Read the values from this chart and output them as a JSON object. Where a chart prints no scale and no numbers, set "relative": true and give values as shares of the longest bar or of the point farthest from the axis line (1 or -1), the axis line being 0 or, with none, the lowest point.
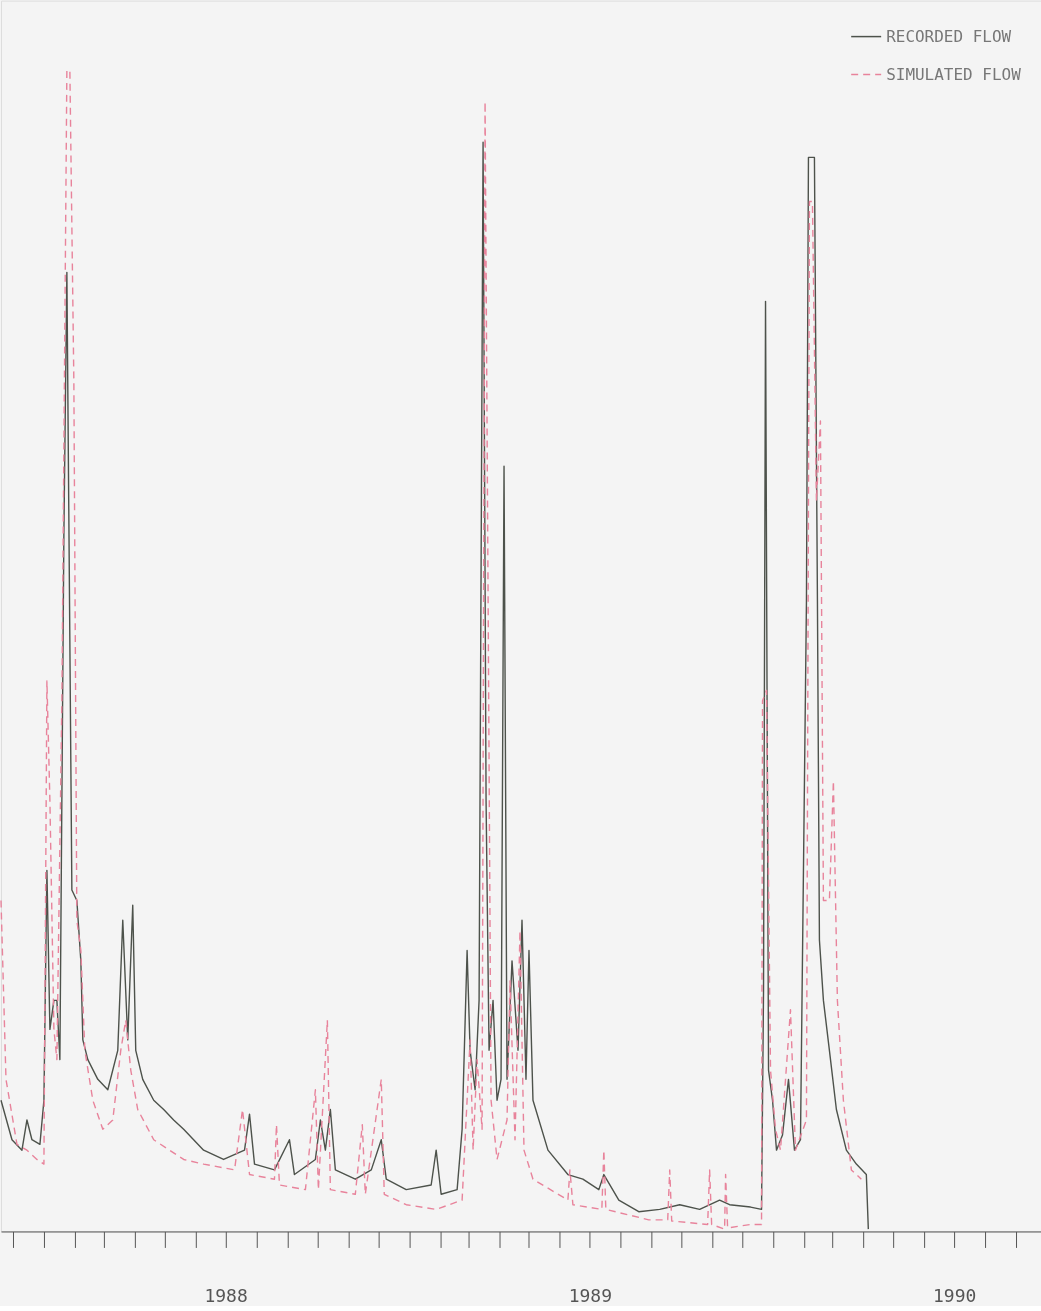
{
  "chart_data": {
    "type": "line",
    "relative": true,
    "legend": "top right",
    "grid": false,
    "marker": "none",
    "xlim": [
      "1987-11-19",
      "1990-09-26"
    ],
    "xticks": [
      {
        "value": "1987-12-01",
        "label": null
      },
      {
        "value": "1988-01-01",
        "label": null
      },
      {
        "value": "1988-02-01",
        "label": null
      },
      {
        "value": "1988-03-01",
        "label": null
      },
      {
        "value": "1988-04-01",
        "label": null
      },
      {
        "value": "1988-05-01",
        "label": null
      },
      {
        "value": "1988-06-01",
        "label": null
      },
      {
        "value": "1988-07-01",
        "label": "1988"
      },
      {
        "value": "1988-08-01",
        "label": null
      },
      {
        "value": "1988-09-01",
        "label": null
      },
      {
        "value": "1988-10-01",
        "label": null
      },
      {
        "value": "1988-11-01",
        "label": null
      },
      {
        "value": "1988-12-01",
        "label": null
      },
      {
        "value": "1989-01-01",
        "label": null
      },
      {
        "value": "1989-02-01",
        "label": null
      },
      {
        "value": "1989-03-01",
        "label": null
      },
      {
        "value": "1989-04-01",
        "label": null
      },
      {
        "value": "1989-05-01",
        "label": null
      },
      {
        "value": "1989-06-01",
        "label": null
      },
      {
        "value": "1989-07-01",
        "label": "1989"
      },
      {
        "value": "1989-08-01",
        "label": null
      },
      {
        "value": "1989-09-01",
        "label": null
      },
      {
        "value": "1989-10-01",
        "label": null
      },
      {
        "value": "1989-11-01",
        "label": null
      },
      {
        "value": "1989-12-01",
        "label": null
      },
      {
        "value": "1990-01-01",
        "label": null
      },
      {
        "value": "1990-02-01",
        "label": null
      },
      {
        "value": "1990-03-01",
        "label": null
      },
      {
        "value": "1990-04-01",
        "label": null
      },
      {
        "value": "1990-05-01",
        "label": null
      },
      {
        "value": "1990-06-01",
        "label": null
      },
      {
        "value": "1990-07-01",
        "label": "1990"
      },
      {
        "value": "1990-08-01",
        "label": null
      },
      {
        "value": "1990-09-01",
        "label": null
      }
    ],
    "series": [
      {
        "name": "RECORDED FLOW",
        "color": "#4d524b",
        "line_style": "solid",
        "x": [
          "1987-11-19",
          "1987-11-30",
          "1987-12-10",
          "1987-12-15",
          "1987-12-20",
          "1987-12-28",
          "1988-01-01",
          "1988-01-04",
          "1988-01-07",
          "1988-01-11",
          "1988-01-14",
          "1988-01-17",
          "1988-01-21",
          "1988-01-24",
          "1988-01-29",
          "1988-02-03",
          "1988-02-07",
          "1988-02-09",
          "1988-02-14",
          "1988-02-24",
          "1988-03-05",
          "1988-03-15",
          "1988-03-20",
          "1988-03-25",
          "1988-03-30",
          "1988-04-02",
          "1988-04-09",
          "1988-04-20",
          "1988-04-30",
          "1988-05-10",
          "1988-05-20",
          "1988-06-09",
          "1988-06-29",
          "1988-07-20",
          "1988-07-25",
          "1988-07-30",
          "1988-08-19",
          "1988-09-03",
          "1988-09-08",
          "1988-09-29",
          "1988-10-04",
          "1988-10-09",
          "1988-10-14",
          "1988-10-19",
          "1988-11-08",
          "1988-11-24",
          "1988-12-04",
          "1988-12-09",
          "1988-12-29",
          "1989-01-23",
          "1989-01-28",
          "1989-02-02",
          "1989-02-18",
          "1989-02-23",
          "1989-02-28",
          "1989-03-03",
          "1989-03-08",
          "1989-03-12",
          "1989-03-16",
          "1989-03-19",
          "1989-03-22",
          "1989-03-26",
          "1989-03-30",
          "1989-04-03",
          "1989-04-06",
          "1989-04-09",
          "1989-04-14",
          "1989-04-20",
          "1989-04-24",
          "1989-04-28",
          "1989-05-01",
          "1989-05-05",
          "1989-05-20",
          "1989-06-09",
          "1989-06-24",
          "1989-07-10",
          "1989-07-15",
          "1989-07-30",
          "1989-08-19",
          "1989-09-09",
          "1989-09-29",
          "1989-10-19",
          "1989-11-08",
          "1989-11-18",
          "1989-12-09",
          "1989-12-20",
          "1989-12-22",
          "1989-12-24",
          "1989-12-27",
          "1989-12-31",
          "1990-01-04",
          "1990-01-10",
          "1990-01-16",
          "1990-01-22",
          "1990-01-28",
          "1990-02-03",
          "1990-02-05",
          "1990-02-08",
          "1990-02-11",
          "1990-02-14",
          "1990-02-16",
          "1990-02-20",
          "1990-02-26",
          "1990-03-05",
          "1990-03-15",
          "1990-03-25",
          "1990-04-04",
          "1990-04-06"
        ],
        "values": [
          0.113,
          0.079,
          0.07,
          0.096,
          0.079,
          0.075,
          0.113,
          0.311,
          0.174,
          0.199,
          0.199,
          0.148,
          0.6,
          0.826,
          0.294,
          0.285,
          0.233,
          0.165,
          0.148,
          0.131,
          0.122,
          0.156,
          0.268,
          0.165,
          0.281,
          0.156,
          0.131,
          0.113,
          0.105,
          0.096,
          0.088,
          0.07,
          0.062,
          0.07,
          0.101,
          0.058,
          0.053,
          0.079,
          0.049,
          0.062,
          0.096,
          0.07,
          0.105,
          0.053,
          0.045,
          0.053,
          0.079,
          0.045,
          0.036,
          0.04,
          0.07,
          0.032,
          0.036,
          0.088,
          0.242,
          0.156,
          0.122,
          0.199,
          0.938,
          0.371,
          0.156,
          0.199,
          0.113,
          0.131,
          0.659,
          0.131,
          0.233,
          0.156,
          0.268,
          0.131,
          0.242,
          0.113,
          0.07,
          0.049,
          0.045,
          0.036,
          0.049,
          0.027,
          0.017,
          0.019,
          0.023,
          0.019,
          0.027,
          0.023,
          0.021,
          0.019,
          0.208,
          0.801,
          0.139,
          0.113,
          0.07,
          0.083,
          0.131,
          0.07,
          0.079,
          0.543,
          0.925,
          0.925,
          0.925,
          0.543,
          0.251,
          0.199,
          0.156,
          0.105,
          0.07,
          0.058,
          0.049,
          0.002
        ]
      },
      {
        "name": "SIMULATED FLOW",
        "color": "#e8839b",
        "line_style": "dashed",
        "x": [
          "1987-11-19",
          "1987-11-24",
          "1987-12-05",
          "1987-12-15",
          "1987-12-25",
          "1988-01-01",
          "1988-01-04",
          "1988-01-07",
          "1988-01-11",
          "1988-01-14",
          "1988-01-19",
          "1988-01-24",
          "1988-01-27",
          "1988-01-31",
          "1988-02-03",
          "1988-02-07",
          "1988-02-11",
          "1988-02-19",
          "1988-02-29",
          "1988-03-10",
          "1988-03-18",
          "1988-03-23",
          "1988-03-28",
          "1988-04-04",
          "1988-04-20",
          "1988-05-20",
          "1988-06-09",
          "1988-07-10",
          "1988-07-18",
          "1988-07-25",
          "1988-08-19",
          "1988-08-21",
          "1988-08-24",
          "1988-09-19",
          "1988-09-29",
          "1988-10-02",
          "1988-10-11",
          "1988-10-14",
          "1988-11-08",
          "1988-11-15",
          "1988-11-18",
          "1988-12-04",
          "1988-12-07",
          "1988-12-29",
          "1989-01-28",
          "1989-02-23",
          "1989-03-03",
          "1989-03-06",
          "1989-03-10",
          "1989-03-15",
          "1989-03-18",
          "1989-03-21",
          "1989-03-24",
          "1989-03-30",
          "1989-04-09",
          "1989-04-12",
          "1989-04-17",
          "1989-04-22",
          "1989-04-26",
          "1989-05-05",
          "1989-06-09",
          "1989-06-11",
          "1989-06-14",
          "1989-07-13",
          "1989-07-15",
          "1989-07-17",
          "1989-08-29",
          "1989-09-17",
          "1989-09-19",
          "1989-09-21",
          "1989-10-27",
          "1989-10-29",
          "1989-10-31",
          "1989-11-13",
          "1989-11-14",
          "1989-11-16",
          "1989-12-09",
          "1989-12-20",
          "1989-12-21",
          "1989-12-25",
          "1989-12-29",
          "1990-01-03",
          "1990-01-08",
          "1990-01-18",
          "1990-01-23",
          "1990-02-03",
          "1990-02-06",
          "1990-02-09",
          "1990-02-13",
          "1990-02-17",
          "1990-02-20",
          "1990-02-26",
          "1990-03-02",
          "1990-03-06",
          "1990-03-12",
          "1990-03-20",
          "1990-03-30"
        ],
        "values": [
          0.285,
          0.131,
          0.075,
          0.07,
          0.062,
          0.058,
          0.474,
          0.371,
          0.174,
          0.148,
          0.457,
          1.0,
          1.0,
          0.732,
          0.268,
          0.242,
          0.156,
          0.113,
          0.088,
          0.096,
          0.156,
          0.182,
          0.139,
          0.105,
          0.079,
          0.062,
          0.058,
          0.053,
          0.105,
          0.049,
          0.045,
          0.092,
          0.04,
          0.036,
          0.122,
          0.036,
          0.182,
          0.036,
          0.032,
          0.092,
          0.032,
          0.131,
          0.032,
          0.023,
          0.019,
          0.027,
          0.165,
          0.07,
          0.148,
          0.088,
          0.973,
          0.552,
          0.113,
          0.062,
          0.096,
          0.216,
          0.079,
          0.259,
          0.07,
          0.045,
          0.027,
          0.053,
          0.023,
          0.019,
          0.07,
          0.019,
          0.01,
          0.01,
          0.053,
          0.009,
          0.006,
          0.053,
          0.006,
          0.002,
          0.049,
          0.003,
          0.006,
          0.006,
          0.457,
          0.466,
          0.139,
          0.088,
          0.07,
          0.191,
          0.07,
          0.096,
          0.887,
          0.887,
          0.629,
          0.698,
          0.285,
          0.285,
          0.388,
          0.199,
          0.113,
          0.053,
          0.045
        ]
      }
    ]
  }
}
